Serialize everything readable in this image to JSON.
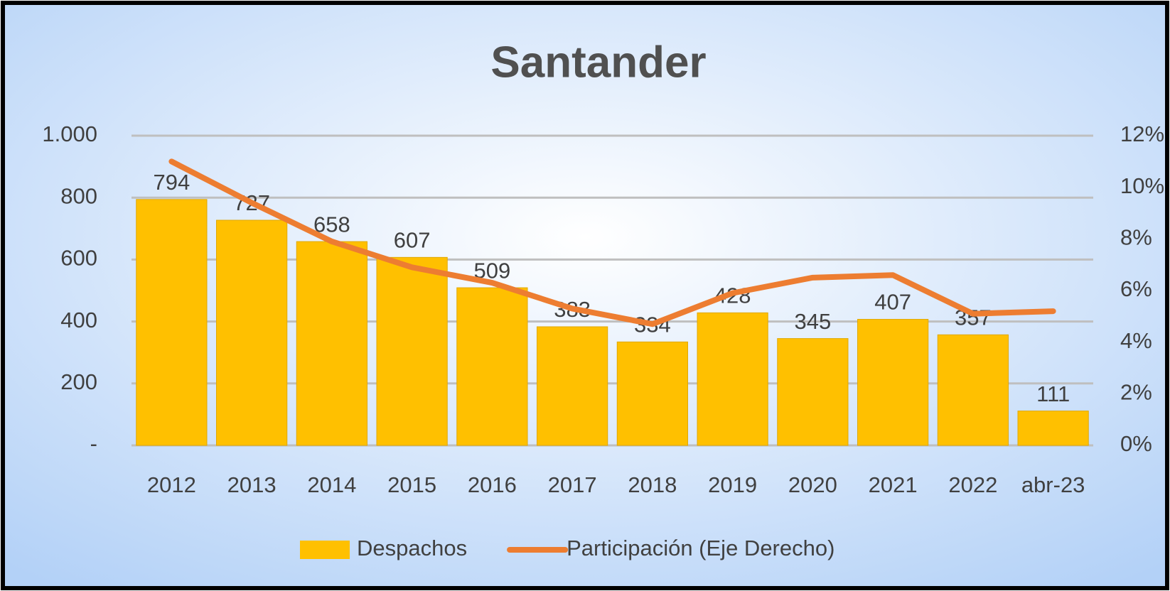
{
  "chart_data": {
    "type": "bar_line",
    "title": "Santander",
    "categories": [
      "2012",
      "2013",
      "2014",
      "2015",
      "2016",
      "2017",
      "2018",
      "2019",
      "2020",
      "2021",
      "2022",
      "abr-23"
    ],
    "series": [
      {
        "name": "Despachos",
        "type": "bar",
        "color": "#FFC000",
        "values": [
          794,
          727,
          658,
          607,
          509,
          383,
          334,
          428,
          345,
          407,
          357,
          111
        ]
      },
      {
        "name": "Participación (Eje Derecho)",
        "type": "line",
        "axis": "y2",
        "color": "#ED7D31",
        "values": [
          11.0,
          9.4,
          7.9,
          6.9,
          6.3,
          5.3,
          4.7,
          5.9,
          6.5,
          6.6,
          5.1,
          5.2
        ]
      }
    ],
    "ylim": [
      0,
      1000
    ],
    "yticks": [
      {
        "value": 0,
        "label": "-"
      },
      200,
      400,
      600,
      800,
      {
        "value": 1000,
        "label": "1.000"
      }
    ],
    "y2lim": [
      0,
      12
    ],
    "y2ticks": [
      {
        "value": 0,
        "label": "0%"
      },
      {
        "value": 2,
        "label": "2%"
      },
      {
        "value": 4,
        "label": "4%"
      },
      {
        "value": 6,
        "label": "6%"
      },
      {
        "value": 8,
        "label": "8%"
      },
      {
        "value": 10,
        "label": "10%"
      },
      {
        "value": 12,
        "label": "12%"
      }
    ],
    "grid": true,
    "legend": "bottom"
  }
}
